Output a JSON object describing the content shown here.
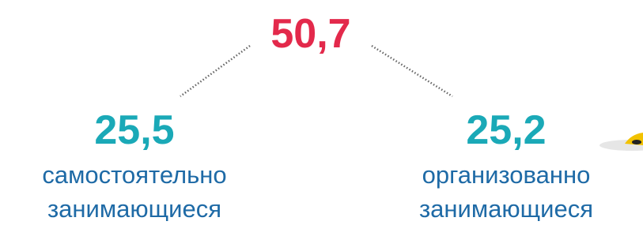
{
  "total": {
    "value": "50,7"
  },
  "nodes": [
    {
      "value": "25,5",
      "label_lines": [
        "самостоятельно",
        "занимающиеся"
      ]
    },
    {
      "value": "25,2",
      "label_lines": [
        "организованно",
        "занимающиеся"
      ]
    }
  ]
}
